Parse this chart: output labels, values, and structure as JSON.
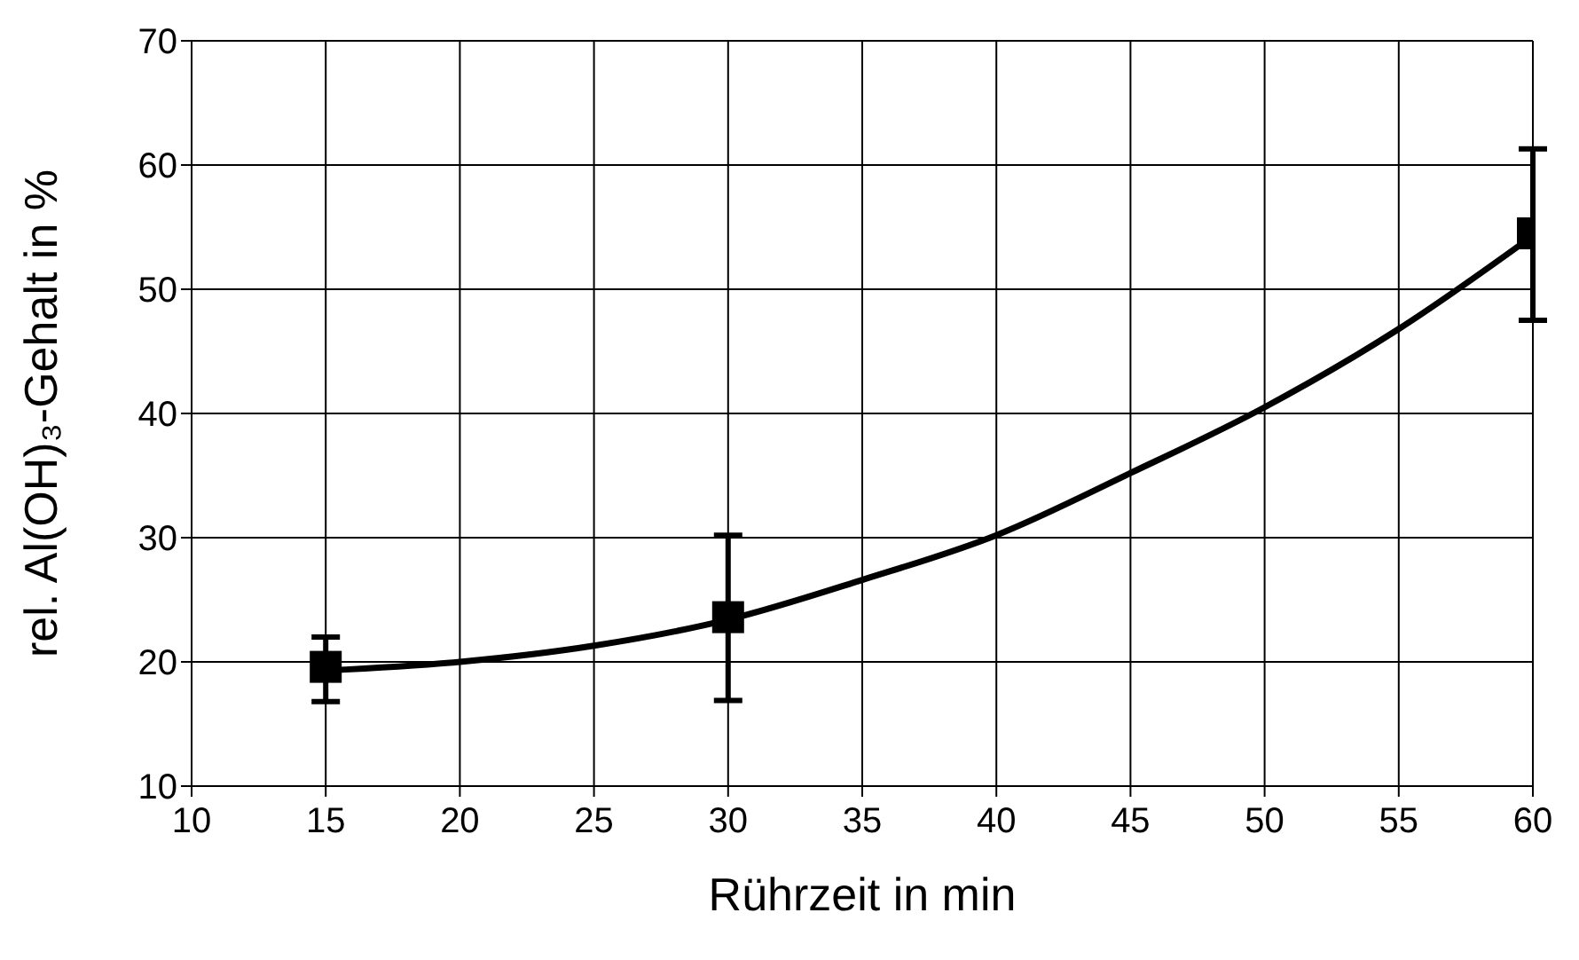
{
  "chart_data": {
    "type": "scatter",
    "xlabel": "Rührzeit in min",
    "ylabel": "rel. Al(OH)₃-Gehalt in %",
    "xlim": [
      10,
      60
    ],
    "xticks": [
      10,
      15,
      20,
      25,
      30,
      35,
      40,
      45,
      50,
      55,
      60
    ],
    "ylim": [
      10,
      70
    ],
    "yticks": [
      10,
      20,
      30,
      40,
      50,
      60,
      70
    ],
    "grid": true,
    "legend": false,
    "series": [
      {
        "type": "scatter",
        "color": "#000000",
        "marker": "square",
        "x": [
          15,
          30,
          60
        ],
        "values": [
          19.6,
          23.6,
          54.5
        ],
        "errors": [
          [
            16.8,
            22.0
          ],
          [
            16.9,
            30.2
          ],
          [
            47.5,
            61.3
          ]
        ]
      },
      {
        "type": "line",
        "color": "#000000",
        "marker": "none",
        "line_style": "solid",
        "x": [
          15,
          20,
          25,
          30,
          35,
          40,
          45,
          50,
          55,
          60
        ],
        "values": [
          19.3,
          20,
          21.3,
          23.4,
          26.6,
          30.2,
          35.2,
          40.5,
          46.8,
          54.3
        ]
      }
    ]
  }
}
